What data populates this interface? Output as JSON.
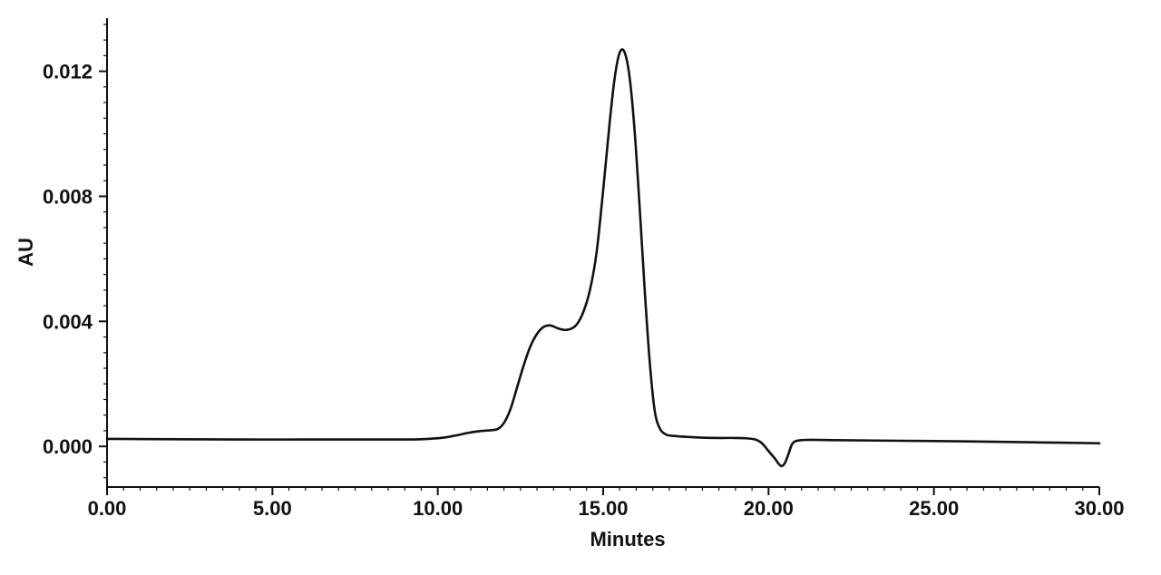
{
  "chart_data": {
    "type": "line",
    "title": "",
    "xlabel": "Minutes",
    "ylabel": "AU",
    "xlim": [
      0,
      30
    ],
    "ylim": [
      -0.0013,
      0.0137
    ],
    "x_ticks": [
      0,
      5,
      10,
      15,
      20,
      25,
      30
    ],
    "x_tick_labels": [
      "0.00",
      "5.00",
      "10.00",
      "15.00",
      "20.00",
      "25.00",
      "30.00"
    ],
    "y_ticks": [
      0,
      0.004,
      0.008,
      0.012
    ],
    "y_tick_labels": [
      "0.000",
      "0.004",
      "0.008",
      "0.012"
    ],
    "grid": false,
    "legend": "none",
    "line_color": "#111111",
    "series": [
      {
        "x": [
          0,
          2,
          4,
          6,
          8,
          9,
          9.5,
          10,
          10.3,
          10.6,
          10.9,
          11.2,
          11.5,
          11.8,
          12.0,
          12.2,
          12.4,
          12.6,
          12.8,
          13.0,
          13.2,
          13.4,
          13.6,
          13.8,
          14.0,
          14.2,
          14.4,
          14.6,
          14.8,
          15.0,
          15.2,
          15.35,
          15.5,
          15.65,
          15.8,
          15.95,
          16.1,
          16.25,
          16.4,
          16.55,
          16.7,
          16.9,
          17.2,
          17.6,
          18.0,
          18.5,
          19.0,
          19.3,
          19.6,
          19.8,
          20.0,
          20.2,
          20.3,
          20.4,
          20.5,
          20.6,
          20.7,
          20.8,
          21.0,
          21.3,
          22,
          24,
          26,
          28,
          30
        ],
        "y": [
          0.00024,
          0.00023,
          0.00022,
          0.00022,
          0.00022,
          0.00022,
          0.00023,
          0.00026,
          0.0003,
          0.00036,
          0.00043,
          0.00048,
          0.00051,
          0.00055,
          0.00075,
          0.0012,
          0.0019,
          0.0026,
          0.0032,
          0.0036,
          0.00382,
          0.00387,
          0.00379,
          0.00373,
          0.00375,
          0.0039,
          0.0043,
          0.005,
          0.0062,
          0.0082,
          0.0104,
          0.0118,
          0.0126,
          0.0126,
          0.0118,
          0.0101,
          0.0077,
          0.0051,
          0.0028,
          0.0012,
          0.0006,
          0.00038,
          0.00033,
          0.0003,
          0.00028,
          0.00027,
          0.00027,
          0.00026,
          0.00022,
          0.0001,
          -0.00015,
          -0.0004,
          -0.00055,
          -0.00063,
          -0.00052,
          -0.00025,
          5e-05,
          0.00016,
          0.0002,
          0.00021,
          0.0002,
          0.00018,
          0.00016,
          0.00013,
          0.0001
        ]
      }
    ]
  }
}
